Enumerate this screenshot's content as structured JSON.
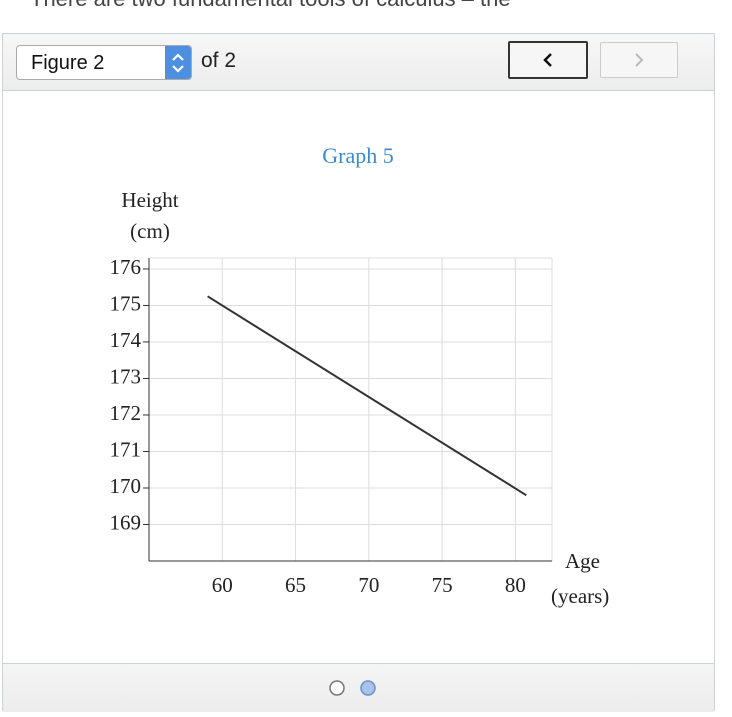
{
  "header_text": "There are two fundamental tools of calculus – the",
  "toolbar": {
    "select": "Figure 2",
    "of": "of 2"
  },
  "chart_data": {
    "type": "line",
    "title": "Graph 5",
    "ylabel_lines": [
      "Height",
      "(cm)"
    ],
    "xlabel_lines": [
      "Age",
      "(years)"
    ],
    "x": [
      59,
      80.75
    ],
    "values": [
      175.25,
      169.8
    ],
    "color": "#333333",
    "xlim": [
      55,
      82.5
    ],
    "xticks": [
      60,
      65,
      70,
      75,
      80
    ],
    "ylim": [
      168,
      176.3
    ],
    "yticks": [
      169,
      170,
      171,
      172,
      173,
      174,
      175,
      176
    ],
    "grid": true
  }
}
